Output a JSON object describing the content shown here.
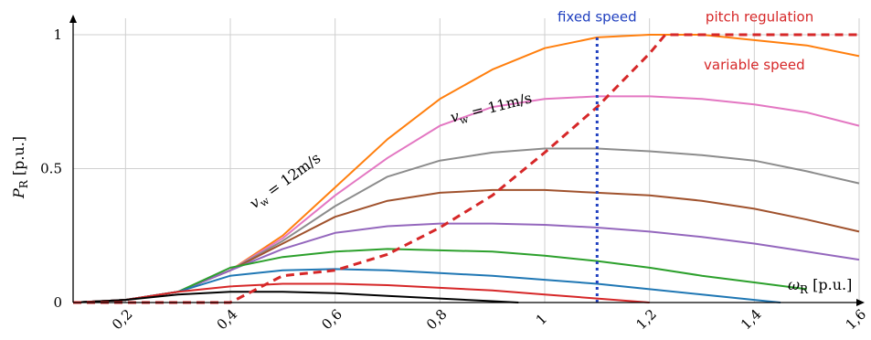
{
  "chart_data": {
    "type": "line",
    "title": "",
    "xlabel_parts": {
      "symbol": "ω",
      "subscript": "R",
      "unit": " [p.u.]"
    },
    "ylabel_parts": {
      "symbol": "P",
      "subscript": "R",
      "unit": " [p.u.]"
    },
    "xlim": [
      0.1,
      1.6
    ],
    "ylim": [
      0,
      1.0
    ],
    "grid": true,
    "x_ticks": [
      {
        "value": 0.2,
        "label": "0,2"
      },
      {
        "value": 0.4,
        "label": "0,4"
      },
      {
        "value": 0.6,
        "label": "0,6"
      },
      {
        "value": 0.8,
        "label": "0,8"
      },
      {
        "value": 1.0,
        "label": "1"
      },
      {
        "value": 1.2,
        "label": "1,2"
      },
      {
        "value": 1.4,
        "label": "1,4"
      },
      {
        "value": 1.6,
        "label": "1,6"
      }
    ],
    "y_ticks": [
      {
        "value": 0,
        "label": "0"
      },
      {
        "value": 0.5,
        "label": "0.5"
      },
      {
        "value": 1,
        "label": "1"
      }
    ],
    "curve_annotations": [
      {
        "prefix": "v",
        "subscript": "w",
        "text": " = 12m/s",
        "x": 0.51,
        "y": 0.44,
        "angle": -36
      },
      {
        "prefix": "v",
        "subscript": "w",
        "text": " = 11m/s",
        "x": 0.9,
        "y": 0.71,
        "angle": -14
      }
    ],
    "text_annotations": [
      {
        "text": "fixed speed",
        "color": "#1f3fbf",
        "x": 1.1,
        "y": 1.05
      },
      {
        "text": "pitch regulation",
        "color": "#d62728",
        "x": 1.41,
        "y": 1.05
      },
      {
        "text": "variable speed",
        "color": "#d62728",
        "x": 1.4,
        "y": 0.87
      }
    ],
    "series": [
      {
        "color": "#ff7f0e",
        "x": [
          0.1,
          0.2,
          0.3,
          0.4,
          0.5,
          0.6,
          0.7,
          0.8,
          0.9,
          1.0,
          1.1,
          1.2,
          1.3,
          1.4,
          1.5,
          1.6
        ],
        "y": [
          0,
          0.01,
          0.04,
          0.12,
          0.25,
          0.43,
          0.61,
          0.76,
          0.87,
          0.95,
          0.99,
          1.0,
          1.0,
          0.98,
          0.96,
          0.92
        ]
      },
      {
        "color": "#e377c2",
        "x": [
          0.1,
          0.2,
          0.3,
          0.4,
          0.5,
          0.6,
          0.7,
          0.8,
          0.9,
          1.0,
          1.1,
          1.2,
          1.3,
          1.4,
          1.5,
          1.6
        ],
        "y": [
          0,
          0.01,
          0.04,
          0.12,
          0.24,
          0.4,
          0.54,
          0.66,
          0.73,
          0.76,
          0.77,
          0.77,
          0.76,
          0.74,
          0.71,
          0.66
        ]
      },
      {
        "color": "#8c8c8c",
        "x": [
          0.1,
          0.2,
          0.3,
          0.4,
          0.5,
          0.6,
          0.7,
          0.8,
          0.9,
          1.0,
          1.1,
          1.2,
          1.3,
          1.4,
          1.5,
          1.6
        ],
        "y": [
          0,
          0.01,
          0.04,
          0.12,
          0.23,
          0.36,
          0.47,
          0.53,
          0.56,
          0.575,
          0.575,
          0.565,
          0.55,
          0.53,
          0.49,
          0.445
        ]
      },
      {
        "color": "#a0522d",
        "x": [
          0.1,
          0.2,
          0.3,
          0.4,
          0.5,
          0.6,
          0.7,
          0.8,
          0.9,
          1.0,
          1.1,
          1.2,
          1.3,
          1.4,
          1.5,
          1.6
        ],
        "y": [
          0,
          0.01,
          0.04,
          0.12,
          0.22,
          0.32,
          0.38,
          0.41,
          0.42,
          0.42,
          0.41,
          0.4,
          0.38,
          0.35,
          0.31,
          0.265
        ]
      },
      {
        "color": "#9467bd",
        "x": [
          0.1,
          0.2,
          0.3,
          0.4,
          0.5,
          0.6,
          0.7,
          0.8,
          0.9,
          1.0,
          1.1,
          1.2,
          1.3,
          1.4,
          1.5,
          1.6
        ],
        "y": [
          0,
          0.01,
          0.04,
          0.12,
          0.2,
          0.26,
          0.285,
          0.295,
          0.295,
          0.29,
          0.28,
          0.265,
          0.245,
          0.22,
          0.19,
          0.16
        ]
      },
      {
        "color": "#2ca02c",
        "x": [
          0.1,
          0.2,
          0.3,
          0.4,
          0.5,
          0.6,
          0.7,
          0.8,
          0.9,
          1.0,
          1.1,
          1.2,
          1.3,
          1.4,
          1.5
        ],
        "y": [
          0,
          0.01,
          0.04,
          0.13,
          0.17,
          0.19,
          0.2,
          0.195,
          0.19,
          0.175,
          0.155,
          0.13,
          0.1,
          0.075,
          0.05
        ]
      },
      {
        "color": "#1f77b4",
        "x": [
          0.1,
          0.2,
          0.3,
          0.4,
          0.5,
          0.6,
          0.7,
          0.8,
          0.9,
          1.0,
          1.1,
          1.2,
          1.3,
          1.4,
          1.45
        ],
        "y": [
          0,
          0.01,
          0.04,
          0.1,
          0.12,
          0.125,
          0.12,
          0.11,
          0.1,
          0.085,
          0.07,
          0.05,
          0.03,
          0.01,
          0
        ]
      },
      {
        "color": "#d62728",
        "x": [
          0.1,
          0.2,
          0.3,
          0.4,
          0.5,
          0.6,
          0.7,
          0.8,
          0.9,
          1.0,
          1.1,
          1.2
        ],
        "y": [
          0,
          0.01,
          0.04,
          0.06,
          0.07,
          0.07,
          0.065,
          0.055,
          0.045,
          0.03,
          0.015,
          0
        ]
      },
      {
        "color": "#000000",
        "x": [
          0.1,
          0.2,
          0.3,
          0.4,
          0.5,
          0.6,
          0.7,
          0.8,
          0.9,
          0.95
        ],
        "y": [
          0,
          0.01,
          0.03,
          0.04,
          0.04,
          0.035,
          0.025,
          0.015,
          0.005,
          0
        ]
      },
      {
        "color": "#d62728",
        "dashed": true,
        "x": [
          0.1,
          0.2,
          0.3,
          0.4,
          0.5,
          0.6,
          0.7,
          0.8,
          0.9,
          1.0,
          1.1,
          1.2,
          1.23,
          1.4,
          1.6
        ],
        "y": [
          0,
          0,
          0,
          0,
          0.1,
          0.12,
          0.18,
          0.28,
          0.4,
          0.56,
          0.73,
          0.93,
          1.0,
          1.0,
          1.0
        ]
      },
      {
        "color": "#1f3fbf",
        "dotted": true,
        "x": [
          1.1,
          1.1
        ],
        "y": [
          0,
          0.99
        ]
      }
    ]
  }
}
